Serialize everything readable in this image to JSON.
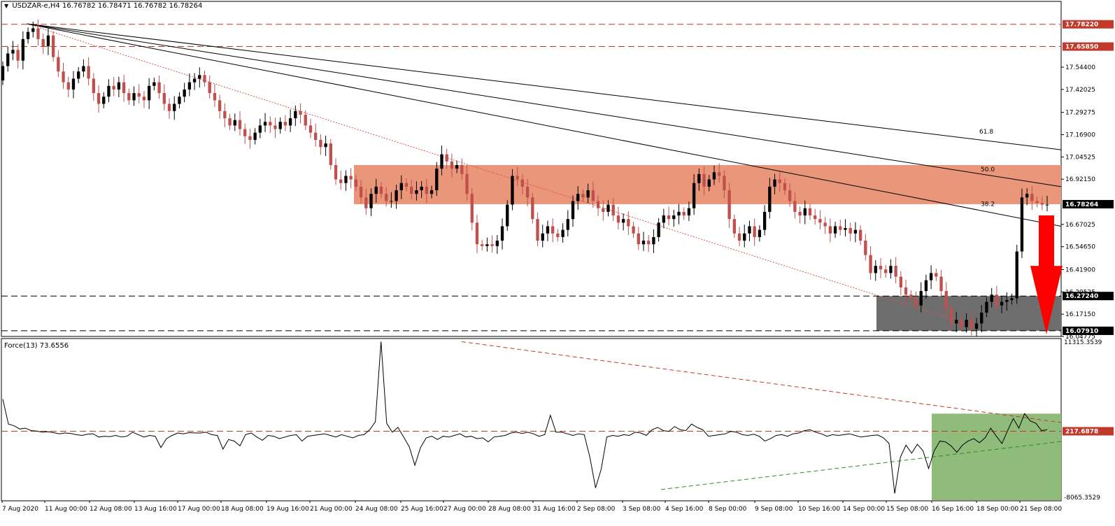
{
  "header": {
    "symbol": "USDZAR-e,H4",
    "ohlc": "16.76782 16.78471 16.76782 16.78264"
  },
  "indicator": {
    "name": "Force(13)",
    "value": "73.6556"
  },
  "colors": {
    "bull": "#000000",
    "bear": "#c0504d",
    "resistance_zone": "#e9967a",
    "support_zone": "#6e6e6e",
    "force_zone": "#8fbc7a",
    "arrow": "#ff0000",
    "tag_red": "#c0392b",
    "tag_black": "#000000"
  },
  "chart_data": [
    {
      "type": "candlestick",
      "title": "USDZAR-e,H4",
      "ylim": [
        16.04775,
        17.855
      ],
      "x_tick_labels": [
        "7 Aug 2020",
        "11 Aug 00:00",
        "12 Aug 08:00",
        "13 Aug 16:00",
        "17 Aug 00:00",
        "18 Aug 08:00",
        "19 Aug 16:00",
        "21 Aug 00:00",
        "24 Aug 08:00",
        "25 Aug 16:00",
        "27 Aug 00:00",
        "28 Aug 08:00",
        "31 Aug 16:00",
        "2 Sep 08:00",
        "3 Sep 08:00",
        "4 Sep 16:00",
        "8 Sep 00:00",
        "9 Sep 08:00",
        "10 Sep 16:00",
        "14 Sep 00:00",
        "15 Sep 08:00",
        "16 Sep 16:00",
        "18 Sep 00:00",
        "21 Sep 08:00"
      ],
      "y_tick_labels": [
        "17.54400",
        "17.42025",
        "17.29275",
        "17.16900",
        "17.04525",
        "16.92150",
        "16.67025",
        "16.54650",
        "16.41900",
        "16.29525",
        "16.17150",
        "16.04775"
      ],
      "price_tags": [
        {
          "label": "17.78220",
          "value": 17.7822,
          "style": "red-dashed"
        },
        {
          "label": "17.65850",
          "value": 17.6585,
          "style": "red-dashed"
        },
        {
          "label": "16.78264",
          "value": 16.78264,
          "style": "current"
        },
        {
          "label": "16.27240",
          "value": 16.2724,
          "style": "black-dashed"
        },
        {
          "label": "16.07910",
          "value": 16.0791,
          "style": "black-dashed"
        }
      ],
      "resistance_zone": [
        16.7826,
        17.0
      ],
      "support_zone": [
        16.0791,
        16.2724
      ],
      "fib_labels": [
        {
          "label": "61.8",
          "value": 17.175
        },
        {
          "label": "50.0",
          "value": 16.965
        },
        {
          "label": "38.2",
          "value": 16.772
        }
      ],
      "closes": [
        17.55,
        17.62,
        17.64,
        17.58,
        17.7,
        17.74,
        17.76,
        17.7,
        17.66,
        17.72,
        17.6,
        17.52,
        17.46,
        17.42,
        17.48,
        17.52,
        17.55,
        17.48,
        17.4,
        17.34,
        17.38,
        17.44,
        17.42,
        17.46,
        17.4,
        17.36,
        17.4,
        17.38,
        17.36,
        17.44,
        17.46,
        17.4,
        17.34,
        17.3,
        17.34,
        17.38,
        17.42,
        17.46,
        17.48,
        17.5,
        17.46,
        17.4,
        17.36,
        17.3,
        17.26,
        17.22,
        17.25,
        17.2,
        17.16,
        17.14,
        17.18,
        17.22,
        17.24,
        17.22,
        17.2,
        17.24,
        17.22,
        17.26,
        17.3,
        17.28,
        17.22,
        17.18,
        17.14,
        17.1,
        17.12,
        17.0,
        16.92,
        16.9,
        16.94,
        16.92,
        16.88,
        16.82,
        16.76,
        16.84,
        16.88,
        16.84,
        16.8,
        16.8,
        16.86,
        16.9,
        16.88,
        16.84,
        16.86,
        16.88,
        16.84,
        16.86,
        16.98,
        17.06,
        17.02,
        16.98,
        17.0,
        16.95,
        16.84,
        16.68,
        16.56,
        16.55,
        16.56,
        16.55,
        16.58,
        16.66,
        16.78,
        16.94,
        16.92,
        16.88,
        16.82,
        16.7,
        16.58,
        16.62,
        16.66,
        16.62,
        16.6,
        16.64,
        16.7,
        16.8,
        16.84,
        16.82,
        16.86,
        16.8,
        16.76,
        16.74,
        16.78,
        16.72,
        16.68,
        16.7,
        16.66,
        16.62,
        16.56,
        16.58,
        16.56,
        16.6,
        16.68,
        16.72,
        16.7,
        16.72,
        16.74,
        16.72,
        16.76,
        16.9,
        16.95,
        16.88,
        16.92,
        16.96,
        16.94,
        16.86,
        16.7,
        16.62,
        16.58,
        16.62,
        16.66,
        16.6,
        16.64,
        16.74,
        16.88,
        16.92,
        16.9,
        16.86,
        16.8,
        16.74,
        16.72,
        16.76,
        16.72,
        16.7,
        16.68,
        16.66,
        16.62,
        16.66,
        16.64,
        16.65,
        16.62,
        16.64,
        16.58,
        16.5,
        16.4,
        16.44,
        16.42,
        16.4,
        16.44,
        16.38,
        16.32,
        16.28,
        16.26,
        16.22,
        16.3,
        16.36,
        16.4,
        16.38,
        16.3,
        16.2,
        16.12,
        16.14,
        16.1,
        16.14,
        16.09,
        16.12,
        16.18,
        16.24,
        16.28,
        16.22,
        16.24,
        16.25,
        16.26,
        16.52,
        16.82,
        16.84,
        16.8,
        16.79,
        16.78,
        16.78
      ],
      "force_tick_labels": [
        "11315.3539",
        "217.6878",
        "-8065.3529"
      ],
      "force_ylim": [
        -8400,
        11700
      ],
      "force_values": [
        4200,
        1100,
        900,
        500,
        600,
        300,
        250,
        100,
        150,
        50,
        -100,
        0,
        -50,
        -200,
        -300,
        -150,
        -100,
        -500,
        -400,
        -450,
        -300,
        -500,
        -400,
        100,
        -200,
        -500,
        -300,
        -400,
        -1800,
        -700,
        -300,
        0,
        -100,
        50,
        0,
        0,
        100,
        -200,
        -300,
        -2000,
        -800,
        -1000,
        -1600,
        -200,
        0,
        -500,
        -900,
        -300,
        -400,
        -700,
        -500,
        -300,
        -200,
        -1000,
        -400,
        -300,
        -200,
        -100,
        -300,
        -500,
        -200,
        -400,
        -600,
        -300,
        -200,
        400,
        1400,
        11315,
        1200,
        100,
        700,
        -500,
        -1700,
        -4000,
        -1800,
        -600,
        -400,
        -800,
        -400,
        -500,
        -300,
        -100,
        -500,
        -400,
        -700,
        -600,
        -1100,
        -500,
        -400,
        -300,
        0,
        100,
        -50,
        100,
        -100,
        -400,
        -200,
        2200,
        100,
        100,
        -100,
        -300,
        -100,
        -200,
        -3000,
        -6800,
        -4500,
        -500,
        -300,
        -400,
        -200,
        -300,
        100,
        0,
        -300,
        400,
        700,
        300,
        200,
        800,
        400,
        300,
        1100,
        700,
        400,
        -400,
        -300,
        -200,
        -100,
        200,
        100,
        -200,
        -300,
        -150,
        -400,
        -1000,
        -700,
        -300,
        -200,
        -400,
        -100,
        0,
        300,
        400,
        100,
        -100,
        -400,
        -200,
        -300,
        -200,
        -100,
        -300,
        -500,
        -400,
        -300,
        -250,
        -600,
        -1300,
        -7500,
        -3000,
        -1500,
        -2500,
        -1400,
        -2200,
        -4400,
        -2200,
        -1000,
        -1100,
        -1600,
        -2400,
        -1500,
        -1000,
        -700,
        -1200,
        -600,
        600,
        -400,
        -1300,
        300,
        1800,
        600,
        2400,
        1500,
        1200,
        300,
        400
      ]
    }
  ]
}
